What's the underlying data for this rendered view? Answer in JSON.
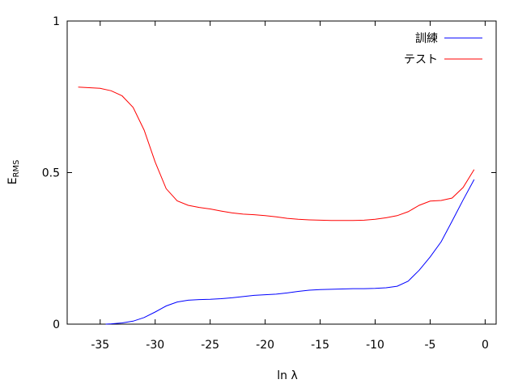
{
  "chart_data": {
    "type": "line",
    "title": "",
    "xlabel": "ln λ",
    "ylabel": {
      "main": "E",
      "sub": "RMS"
    },
    "xlim": [
      -38,
      1
    ],
    "ylim": [
      0,
      1
    ],
    "grid": false,
    "legend_position": "top-right",
    "x_ticks": [
      -35,
      -30,
      -25,
      -20,
      -15,
      -10,
      -5,
      0
    ],
    "x_tick_labels": [
      "-35",
      "-30",
      "-25",
      "-20",
      "-15",
      "-10",
      "-5",
      "0"
    ],
    "y_ticks": [
      0,
      0.5,
      1
    ],
    "y_tick_labels": [
      "0",
      "0.5",
      "1"
    ],
    "series": [
      {
        "name": "訓練",
        "color": "#0000ff",
        "points": [
          [
            -34.5,
            0.0
          ],
          [
            -34,
            0.001
          ],
          [
            -33,
            0.004
          ],
          [
            -32,
            0.01
          ],
          [
            -31,
            0.022
          ],
          [
            -30,
            0.04
          ],
          [
            -29,
            0.06
          ],
          [
            -28,
            0.073
          ],
          [
            -27,
            0.079
          ],
          [
            -26,
            0.081
          ],
          [
            -25,
            0.082
          ],
          [
            -24,
            0.084
          ],
          [
            -23,
            0.087
          ],
          [
            -22,
            0.091
          ],
          [
            -21,
            0.095
          ],
          [
            -20,
            0.097
          ],
          [
            -19,
            0.099
          ],
          [
            -18,
            0.103
          ],
          [
            -17,
            0.108
          ],
          [
            -16,
            0.112
          ],
          [
            -15,
            0.114
          ],
          [
            -14,
            0.115
          ],
          [
            -13,
            0.116
          ],
          [
            -12,
            0.117
          ],
          [
            -11,
            0.117
          ],
          [
            -10,
            0.118
          ],
          [
            -9,
            0.12
          ],
          [
            -8,
            0.125
          ],
          [
            -7,
            0.142
          ],
          [
            -6,
            0.178
          ],
          [
            -5,
            0.222
          ],
          [
            -4,
            0.272
          ],
          [
            -3,
            0.34
          ],
          [
            -2,
            0.41
          ],
          [
            -1,
            0.477
          ]
        ]
      },
      {
        "name": "テスト",
        "color": "#ff0000",
        "points": [
          [
            -37,
            0.782
          ],
          [
            -36,
            0.78
          ],
          [
            -35,
            0.778
          ],
          [
            -34,
            0.77
          ],
          [
            -33,
            0.753
          ],
          [
            -32,
            0.715
          ],
          [
            -31,
            0.64
          ],
          [
            -30,
            0.535
          ],
          [
            -29,
            0.447
          ],
          [
            -28,
            0.407
          ],
          [
            -27,
            0.392
          ],
          [
            -26,
            0.385
          ],
          [
            -25,
            0.38
          ],
          [
            -24,
            0.373
          ],
          [
            -23,
            0.367
          ],
          [
            -22,
            0.363
          ],
          [
            -21,
            0.361
          ],
          [
            -20,
            0.358
          ],
          [
            -19,
            0.354
          ],
          [
            -18,
            0.349
          ],
          [
            -17,
            0.346
          ],
          [
            -16,
            0.344
          ],
          [
            -15,
            0.343
          ],
          [
            -14,
            0.342
          ],
          [
            -13,
            0.342
          ],
          [
            -12,
            0.342
          ],
          [
            -11,
            0.343
          ],
          [
            -10,
            0.346
          ],
          [
            -9,
            0.351
          ],
          [
            -8,
            0.358
          ],
          [
            -7,
            0.371
          ],
          [
            -6,
            0.392
          ],
          [
            -5,
            0.406
          ],
          [
            -4,
            0.408
          ],
          [
            -3,
            0.416
          ],
          [
            -2,
            0.451
          ],
          [
            -1,
            0.51
          ]
        ]
      }
    ]
  }
}
